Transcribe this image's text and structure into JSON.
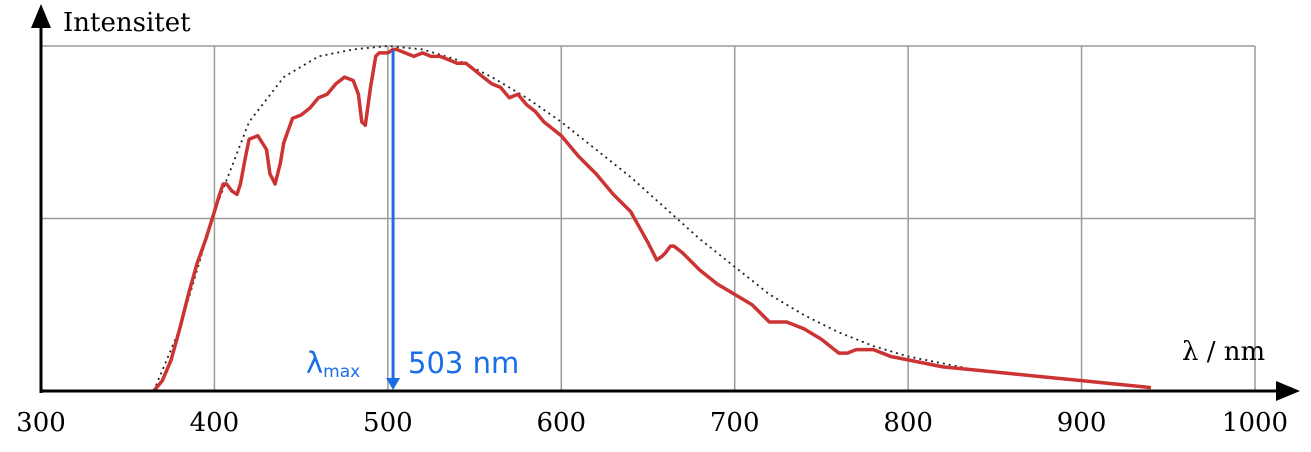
{
  "chart_data": {
    "type": "line",
    "ylabel": "Intensitet",
    "xlabel": "λ  / nm",
    "xlim": [
      300,
      1000
    ],
    "ylim": [
      0,
      1
    ],
    "xticks": [
      300,
      400,
      500,
      600,
      700,
      800,
      900,
      1000
    ],
    "yticks": [
      0,
      0.5,
      1
    ],
    "grid": true,
    "legend": "none",
    "annotations": {
      "lambda_symbol": "λ",
      "lambda_subscript": "max",
      "peak_text": "503 nm",
      "peak_x": 503
    },
    "series": [
      {
        "style": "solid",
        "color": "#cc3333",
        "x": [
          365,
          370,
          375,
          380,
          385,
          390,
          395,
          400,
          403,
          405,
          407,
          410,
          413,
          415,
          418,
          420,
          425,
          430,
          432,
          435,
          438,
          440,
          445,
          450,
          455,
          460,
          465,
          470,
          475,
          480,
          483,
          485,
          487,
          490,
          493,
          495,
          500,
          503,
          505,
          510,
          515,
          520,
          525,
          530,
          535,
          540,
          545,
          550,
          555,
          560,
          565,
          570,
          575,
          580,
          585,
          590,
          600,
          610,
          620,
          630,
          640,
          650,
          655,
          658,
          660,
          663,
          665,
          670,
          680,
          690,
          700,
          710,
          720,
          730,
          740,
          750,
          760,
          765,
          770,
          780,
          790,
          800,
          820,
          840,
          860,
          880,
          900,
          920,
          940
        ],
        "y": [
          0,
          0.03,
          0.09,
          0.18,
          0.28,
          0.37,
          0.44,
          0.52,
          0.57,
          0.6,
          0.6,
          0.58,
          0.57,
          0.6,
          0.68,
          0.73,
          0.74,
          0.7,
          0.63,
          0.6,
          0.66,
          0.72,
          0.79,
          0.8,
          0.82,
          0.85,
          0.86,
          0.89,
          0.91,
          0.9,
          0.86,
          0.78,
          0.77,
          0.88,
          0.97,
          0.98,
          0.98,
          0.99,
          0.99,
          0.98,
          0.97,
          0.98,
          0.97,
          0.97,
          0.96,
          0.95,
          0.95,
          0.93,
          0.91,
          0.89,
          0.88,
          0.85,
          0.86,
          0.83,
          0.81,
          0.78,
          0.74,
          0.68,
          0.63,
          0.57,
          0.52,
          0.43,
          0.38,
          0.39,
          0.4,
          0.42,
          0.42,
          0.4,
          0.35,
          0.31,
          0.28,
          0.25,
          0.2,
          0.2,
          0.18,
          0.15,
          0.11,
          0.11,
          0.12,
          0.12,
          0.1,
          0.09,
          0.07,
          0.06,
          0.05,
          0.04,
          0.03,
          0.02,
          0.01
        ]
      },
      {
        "style": "dotted",
        "color": "#222222",
        "x": [
          365,
          380,
          400,
          420,
          440,
          460,
          480,
          500,
          520,
          540,
          560,
          580,
          600,
          620,
          640,
          660,
          680,
          700,
          720,
          740,
          760,
          780,
          800,
          820,
          840,
          860,
          880,
          900,
          920,
          940
        ],
        "y": [
          0,
          0.18,
          0.52,
          0.78,
          0.91,
          0.97,
          0.99,
          1.0,
          0.99,
          0.96,
          0.91,
          0.85,
          0.78,
          0.7,
          0.62,
          0.53,
          0.44,
          0.36,
          0.28,
          0.22,
          0.17,
          0.13,
          0.1,
          0.08,
          0.06,
          0.05,
          0.04,
          0.03,
          0.02,
          0.01
        ]
      }
    ]
  }
}
